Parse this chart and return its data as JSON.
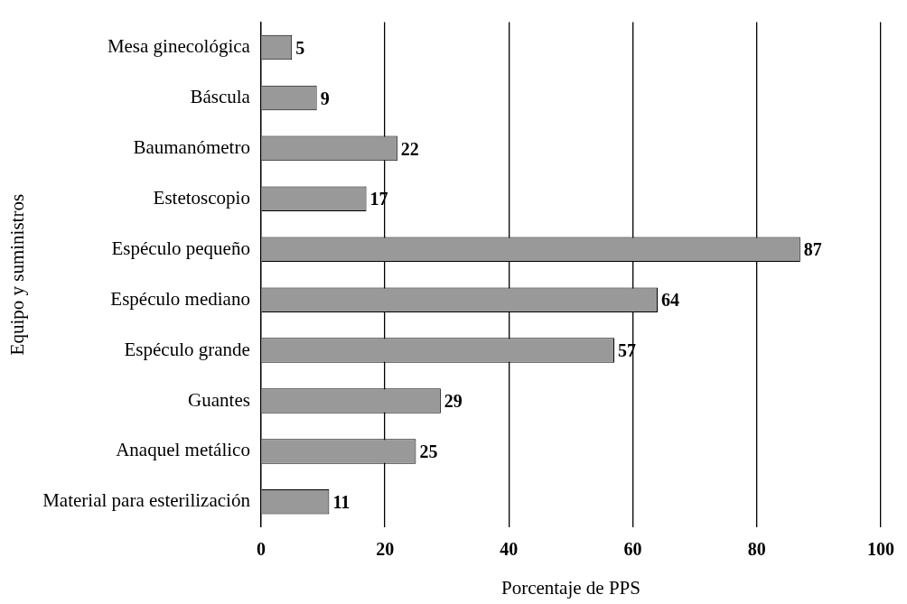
{
  "chart_data": {
    "type": "bar",
    "orientation": "horizontal",
    "xlabel": "Porcentaje de PPS",
    "ylabel": "Equipo y suministros",
    "categories": [
      "Mesa ginecológica",
      "Báscula",
      "Baumanómetro",
      "Estetoscopio",
      "Espéculo pequeño",
      "Espéculo mediano",
      "Espéculo grande",
      "Guantes",
      "Anaquel metálico",
      "Material para esterilización"
    ],
    "values": [
      5,
      9,
      22,
      17,
      87,
      64,
      57,
      29,
      25,
      11
    ],
    "color": "#999999",
    "xlim": [
      0,
      100
    ],
    "xticks": [
      0,
      20,
      40,
      60,
      80,
      100
    ],
    "grid": "x",
    "data_labels": true
  }
}
